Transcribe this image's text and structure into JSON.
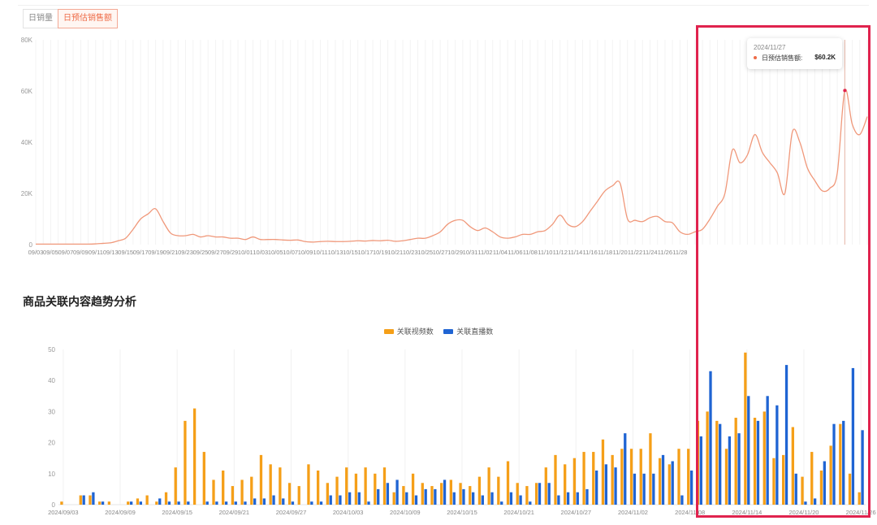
{
  "tabs": [
    "日销量",
    "日预估销售额"
  ],
  "tooltip": {
    "date": "2024/11/27",
    "label": "日预估销售额:",
    "value": "$60.2K"
  },
  "section_title": "商品关联内容趋势分析",
  "colors": {
    "line": "#f0987a",
    "video": "#f59f18",
    "live": "#1f64d3",
    "highlight": "#e0234e",
    "tab_active": "#ee6b47"
  },
  "chart_data": [
    {
      "type": "line",
      "yticks": [
        "0",
        "20K",
        "40K",
        "60K",
        "80K"
      ],
      "ylim": [
        0,
        80000
      ],
      "x_tick_labels": [
        "09/03",
        "09/05",
        "09/07",
        "09/09",
        "09/11",
        "09/13",
        "09/15",
        "09/17",
        "09/19",
        "09/21",
        "09/23",
        "09/25",
        "09/27",
        "09/29",
        "10/01",
        "10/03",
        "10/05",
        "10/07",
        "10/09",
        "10/11",
        "10/13",
        "10/15",
        "10/17",
        "10/19",
        "10/21",
        "10/23",
        "10/25",
        "10/27",
        "10/29",
        "10/31",
        "11/02",
        "11/04",
        "11/06",
        "11/08",
        "11/10",
        "11/12",
        "11/14",
        "11/16",
        "11/18",
        "11/20",
        "11/22",
        "11/24",
        "11/26",
        "11/28"
      ],
      "series": [
        {
          "values": [
            200,
            200,
            200,
            200,
            200,
            200,
            200,
            200,
            300,
            500,
            700,
            1500,
            2500,
            6000,
            10000,
            12000,
            14000,
            9000,
            4500,
            3500,
            3500,
            4000,
            3000,
            3500,
            3000,
            3000,
            2500,
            2500,
            2000,
            3000,
            2000,
            2000,
            2000,
            1800,
            1700,
            1800,
            1200,
            1000,
            1200,
            1300,
            1200,
            1200,
            1300,
            1500,
            1400,
            1600,
            1500,
            1700,
            1300,
            1500,
            2000,
            2500,
            2500,
            3500,
            5000,
            8000,
            9500,
            9500,
            7000,
            5500,
            6500,
            5000,
            3000,
            2500,
            3000,
            4000,
            4000,
            5000,
            5500,
            8000,
            11500,
            8000,
            7000,
            9000,
            13000,
            17000,
            21000,
            23000,
            24000,
            10000,
            9500,
            9000,
            10500,
            11000,
            9000,
            8500,
            5000,
            4000,
            5000,
            6000,
            10000,
            15000,
            20000,
            37000,
            32000,
            35000,
            43000,
            36000,
            32000,
            28000,
            20000,
            44000,
            40000,
            30000,
            25000,
            21000,
            22000,
            28000,
            60200,
            47000,
            43000,
            50000
          ]
        }
      ]
    },
    {
      "type": "bar",
      "yticks": [
        "0",
        "10",
        "20",
        "30",
        "40",
        "50"
      ],
      "ylim": [
        0,
        50
      ],
      "x_tick_labels": [
        "2024/09/03",
        "2024/09/09",
        "2024/09/15",
        "2024/09/21",
        "2024/09/27",
        "2024/10/03",
        "2024/10/09",
        "2024/10/15",
        "2024/10/21",
        "2024/10/27",
        "2024/11/02",
        "2024/11/08",
        "2024/11/14",
        "2024/11/20",
        "2024/11/26"
      ],
      "series": [
        {
          "name": "关联视频数",
          "values": [
            1,
            0,
            3,
            3,
            1,
            1,
            0,
            1,
            2,
            3,
            1,
            4,
            12,
            27,
            31,
            17,
            8,
            11,
            6,
            8,
            9,
            16,
            13,
            12,
            7,
            6,
            13,
            11,
            7,
            9,
            12,
            10,
            12,
            10,
            12,
            4,
            6,
            10,
            7,
            6,
            7,
            8,
            7,
            6,
            9,
            12,
            9,
            14,
            7,
            6,
            7,
            12,
            16,
            13,
            15,
            17,
            17,
            21,
            16,
            18,
            18,
            18,
            23,
            15,
            13,
            18,
            18,
            27,
            30,
            27,
            18,
            28,
            49,
            28,
            30,
            15,
            16,
            25,
            9,
            17,
            11,
            19,
            26,
            10,
            4
          ]
        },
        {
          "name": "关联直播数",
          "values": [
            0,
            0,
            3,
            4,
            1,
            0,
            0,
            1,
            1,
            0,
            2,
            1,
            1,
            1,
            0,
            1,
            1,
            1,
            1,
            1,
            2,
            2,
            3,
            2,
            1,
            0,
            1,
            1,
            3,
            3,
            4,
            4,
            1,
            5,
            7,
            8,
            4,
            3,
            5,
            5,
            8,
            4,
            5,
            4,
            3,
            4,
            1,
            4,
            3,
            1,
            7,
            7,
            3,
            4,
            4,
            5,
            11,
            13,
            12,
            23,
            10,
            10,
            10,
            16,
            14,
            3,
            11,
            22,
            43,
            26,
            22,
            23,
            35,
            27,
            35,
            32,
            45,
            10,
            1,
            2,
            14,
            26,
            27,
            44,
            24
          ]
        }
      ]
    }
  ]
}
